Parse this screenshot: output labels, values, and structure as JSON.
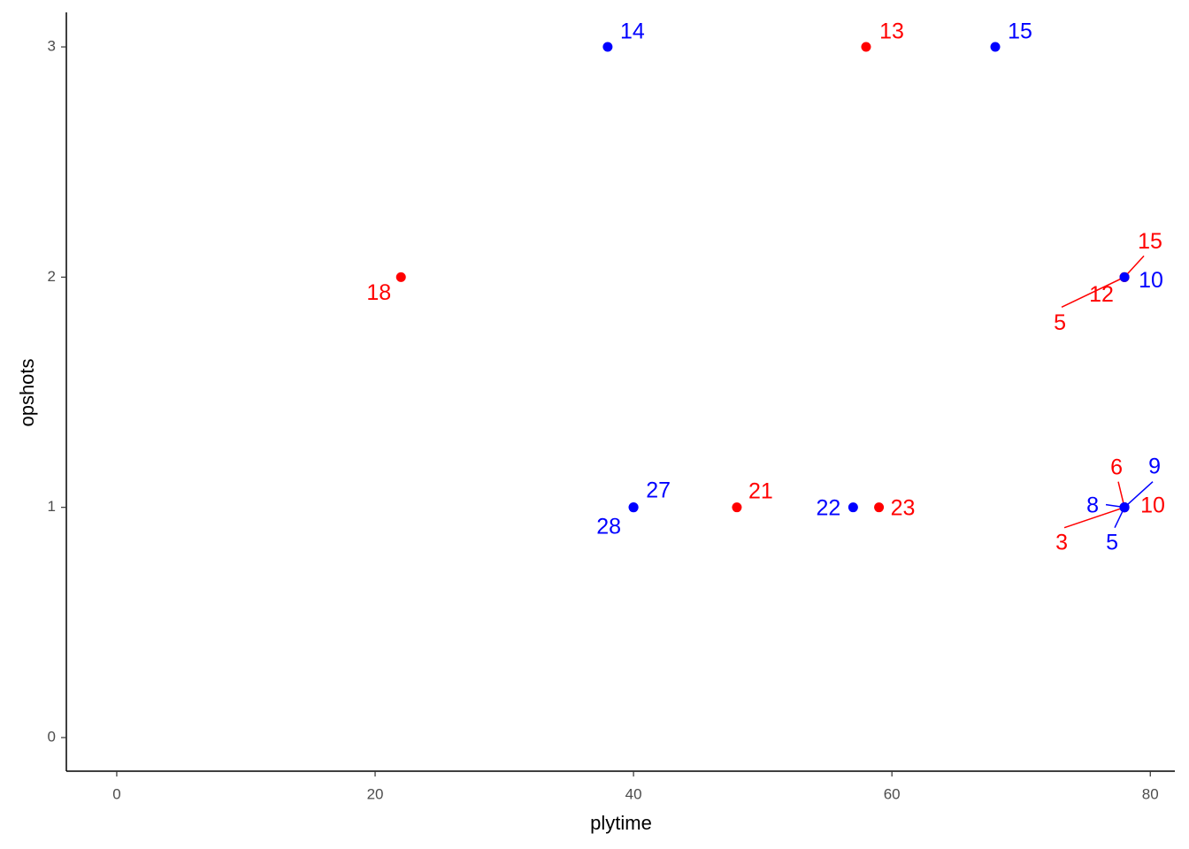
{
  "chart_data": {
    "type": "scatter",
    "x_label": "plytime",
    "y_label": "opshots",
    "xlim": [
      -3.9,
      81.9
    ],
    "ylim": [
      -0.146,
      3.15
    ],
    "xticks": [
      0,
      20,
      40,
      60,
      80
    ],
    "yticks": [
      0,
      1,
      2,
      3
    ],
    "grid": false,
    "series": [
      {
        "color": "#ff0000",
        "x": [
          58,
          22,
          78,
          78,
          78,
          48,
          59,
          78,
          78,
          78
        ],
        "values": [
          3,
          2,
          2,
          2,
          2,
          1,
          1,
          1,
          1,
          1
        ],
        "labels": [
          "13",
          "18",
          "15",
          "12",
          "5",
          "21",
          "23",
          "6",
          "10",
          "3"
        ]
      },
      {
        "color": "#0000ff",
        "x": [
          38,
          68,
          78,
          40,
          40,
          57,
          78,
          78,
          78
        ],
        "values": [
          3,
          3,
          2,
          1,
          1,
          1,
          1,
          1,
          1
        ],
        "labels": [
          "14",
          "15",
          "10",
          "27",
          "28",
          "22",
          "9",
          "8",
          "5"
        ]
      }
    ]
  }
}
